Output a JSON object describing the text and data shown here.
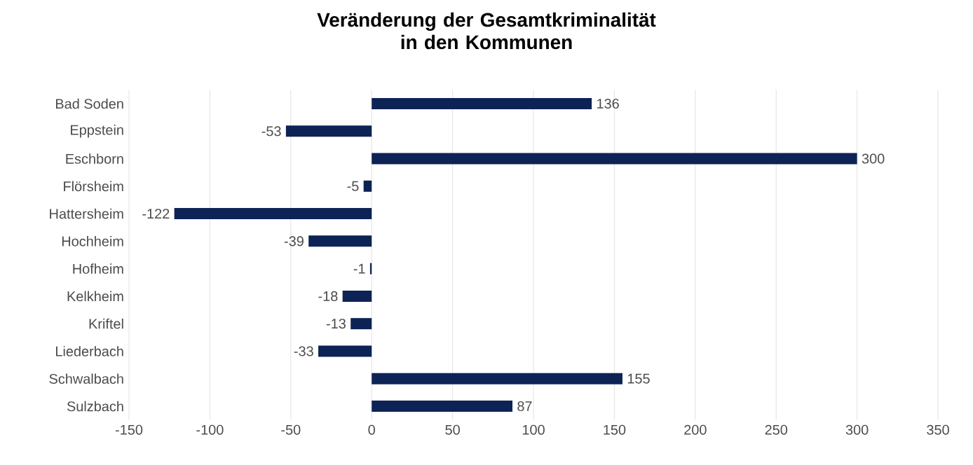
{
  "chart_data": {
    "type": "bar",
    "orientation": "horizontal",
    "title": "Veränderung der Gesamtkriminalität in den Kommunen",
    "categories": [
      "Bad Soden",
      "Eppstein",
      "Eschborn",
      "Flörsheim",
      "Hattersheim",
      "Hochheim",
      "Hofheim",
      "Kelkheim",
      "Kriftel",
      "Liederbach",
      "Schwalbach",
      "Sulzbach"
    ],
    "values": [
      136,
      -53,
      300,
      -5,
      -122,
      -39,
      -1,
      -18,
      -13,
      -33,
      155,
      87
    ],
    "color": "#0d2356",
    "xlim": [
      -150,
      350
    ],
    "xticks": [
      -150,
      -100,
      -50,
      0,
      50,
      100,
      150,
      200,
      250,
      300,
      350
    ],
    "grid": "x",
    "data_labels": true
  }
}
